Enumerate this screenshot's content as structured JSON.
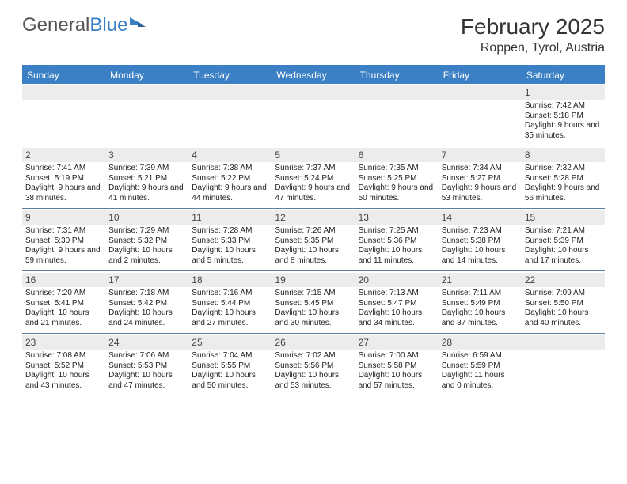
{
  "logo": {
    "text_gray": "General",
    "text_blue": "Blue"
  },
  "title": "February 2025",
  "location": "Roppen, Tyrol, Austria",
  "colors": {
    "header_bar": "#3b7fc4",
    "daynum_bg": "#ececec",
    "week_divider": "#5a7fa0",
    "text": "#222222",
    "background": "#ffffff"
  },
  "typography": {
    "title_fontsize": 28,
    "location_fontsize": 16,
    "dayhead_fontsize": 12,
    "daynum_fontsize": 12,
    "info_fontsize": 10
  },
  "day_headers": [
    "Sunday",
    "Monday",
    "Tuesday",
    "Wednesday",
    "Thursday",
    "Friday",
    "Saturday"
  ],
  "weeks": [
    [
      {
        "n": "",
        "sr": "",
        "ss": "",
        "dl": ""
      },
      {
        "n": "",
        "sr": "",
        "ss": "",
        "dl": ""
      },
      {
        "n": "",
        "sr": "",
        "ss": "",
        "dl": ""
      },
      {
        "n": "",
        "sr": "",
        "ss": "",
        "dl": ""
      },
      {
        "n": "",
        "sr": "",
        "ss": "",
        "dl": ""
      },
      {
        "n": "",
        "sr": "",
        "ss": "",
        "dl": ""
      },
      {
        "n": "1",
        "sr": "Sunrise: 7:42 AM",
        "ss": "Sunset: 5:18 PM",
        "dl": "Daylight: 9 hours and 35 minutes."
      }
    ],
    [
      {
        "n": "2",
        "sr": "Sunrise: 7:41 AM",
        "ss": "Sunset: 5:19 PM",
        "dl": "Daylight: 9 hours and 38 minutes."
      },
      {
        "n": "3",
        "sr": "Sunrise: 7:39 AM",
        "ss": "Sunset: 5:21 PM",
        "dl": "Daylight: 9 hours and 41 minutes."
      },
      {
        "n": "4",
        "sr": "Sunrise: 7:38 AM",
        "ss": "Sunset: 5:22 PM",
        "dl": "Daylight: 9 hours and 44 minutes."
      },
      {
        "n": "5",
        "sr": "Sunrise: 7:37 AM",
        "ss": "Sunset: 5:24 PM",
        "dl": "Daylight: 9 hours and 47 minutes."
      },
      {
        "n": "6",
        "sr": "Sunrise: 7:35 AM",
        "ss": "Sunset: 5:25 PM",
        "dl": "Daylight: 9 hours and 50 minutes."
      },
      {
        "n": "7",
        "sr": "Sunrise: 7:34 AM",
        "ss": "Sunset: 5:27 PM",
        "dl": "Daylight: 9 hours and 53 minutes."
      },
      {
        "n": "8",
        "sr": "Sunrise: 7:32 AM",
        "ss": "Sunset: 5:28 PM",
        "dl": "Daylight: 9 hours and 56 minutes."
      }
    ],
    [
      {
        "n": "9",
        "sr": "Sunrise: 7:31 AM",
        "ss": "Sunset: 5:30 PM",
        "dl": "Daylight: 9 hours and 59 minutes."
      },
      {
        "n": "10",
        "sr": "Sunrise: 7:29 AM",
        "ss": "Sunset: 5:32 PM",
        "dl": "Daylight: 10 hours and 2 minutes."
      },
      {
        "n": "11",
        "sr": "Sunrise: 7:28 AM",
        "ss": "Sunset: 5:33 PM",
        "dl": "Daylight: 10 hours and 5 minutes."
      },
      {
        "n": "12",
        "sr": "Sunrise: 7:26 AM",
        "ss": "Sunset: 5:35 PM",
        "dl": "Daylight: 10 hours and 8 minutes."
      },
      {
        "n": "13",
        "sr": "Sunrise: 7:25 AM",
        "ss": "Sunset: 5:36 PM",
        "dl": "Daylight: 10 hours and 11 minutes."
      },
      {
        "n": "14",
        "sr": "Sunrise: 7:23 AM",
        "ss": "Sunset: 5:38 PM",
        "dl": "Daylight: 10 hours and 14 minutes."
      },
      {
        "n": "15",
        "sr": "Sunrise: 7:21 AM",
        "ss": "Sunset: 5:39 PM",
        "dl": "Daylight: 10 hours and 17 minutes."
      }
    ],
    [
      {
        "n": "16",
        "sr": "Sunrise: 7:20 AM",
        "ss": "Sunset: 5:41 PM",
        "dl": "Daylight: 10 hours and 21 minutes."
      },
      {
        "n": "17",
        "sr": "Sunrise: 7:18 AM",
        "ss": "Sunset: 5:42 PM",
        "dl": "Daylight: 10 hours and 24 minutes."
      },
      {
        "n": "18",
        "sr": "Sunrise: 7:16 AM",
        "ss": "Sunset: 5:44 PM",
        "dl": "Daylight: 10 hours and 27 minutes."
      },
      {
        "n": "19",
        "sr": "Sunrise: 7:15 AM",
        "ss": "Sunset: 5:45 PM",
        "dl": "Daylight: 10 hours and 30 minutes."
      },
      {
        "n": "20",
        "sr": "Sunrise: 7:13 AM",
        "ss": "Sunset: 5:47 PM",
        "dl": "Daylight: 10 hours and 34 minutes."
      },
      {
        "n": "21",
        "sr": "Sunrise: 7:11 AM",
        "ss": "Sunset: 5:49 PM",
        "dl": "Daylight: 10 hours and 37 minutes."
      },
      {
        "n": "22",
        "sr": "Sunrise: 7:09 AM",
        "ss": "Sunset: 5:50 PM",
        "dl": "Daylight: 10 hours and 40 minutes."
      }
    ],
    [
      {
        "n": "23",
        "sr": "Sunrise: 7:08 AM",
        "ss": "Sunset: 5:52 PM",
        "dl": "Daylight: 10 hours and 43 minutes."
      },
      {
        "n": "24",
        "sr": "Sunrise: 7:06 AM",
        "ss": "Sunset: 5:53 PM",
        "dl": "Daylight: 10 hours and 47 minutes."
      },
      {
        "n": "25",
        "sr": "Sunrise: 7:04 AM",
        "ss": "Sunset: 5:55 PM",
        "dl": "Daylight: 10 hours and 50 minutes."
      },
      {
        "n": "26",
        "sr": "Sunrise: 7:02 AM",
        "ss": "Sunset: 5:56 PM",
        "dl": "Daylight: 10 hours and 53 minutes."
      },
      {
        "n": "27",
        "sr": "Sunrise: 7:00 AM",
        "ss": "Sunset: 5:58 PM",
        "dl": "Daylight: 10 hours and 57 minutes."
      },
      {
        "n": "28",
        "sr": "Sunrise: 6:59 AM",
        "ss": "Sunset: 5:59 PM",
        "dl": "Daylight: 11 hours and 0 minutes."
      },
      {
        "n": "",
        "sr": "",
        "ss": "",
        "dl": ""
      }
    ]
  ]
}
